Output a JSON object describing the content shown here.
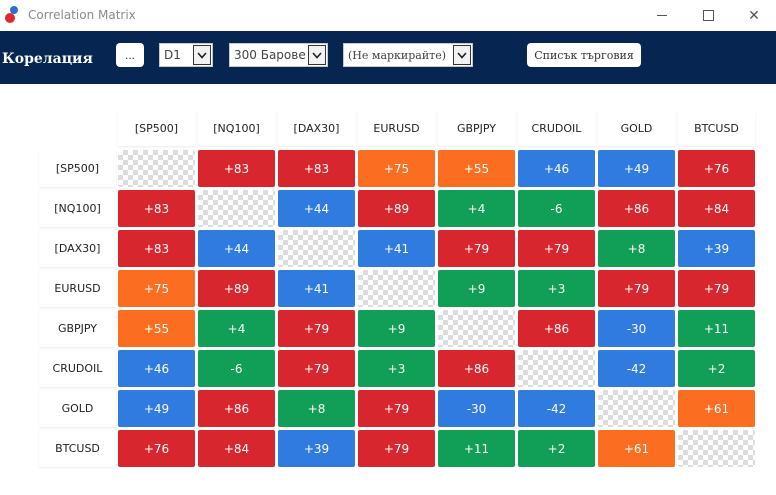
{
  "window": {
    "title": "Correlation Matrix"
  },
  "toolbar": {
    "title": "Корелация",
    "ellipsis_label": "...",
    "timeframe": "D1",
    "bars": "300 Барове",
    "marking": "(Не маркирайте)",
    "trade_list_label": "Списък търговия"
  },
  "colors": {
    "strong_pos": "#d8262e",
    "weak_pos": "#119e57",
    "medium": "#fb6e21",
    "negative_or_low": "#2f7be0"
  },
  "symbols": [
    "[SP500]",
    "[NQ100]",
    "[DAX30]",
    "EURUSD",
    "GBPJPY",
    "CRUDOIL",
    "GOLD",
    "BTCUSD"
  ],
  "matrix": [
    [
      null,
      "+83",
      "+83",
      "+75",
      "+55",
      "+46",
      "+49",
      "+76"
    ],
    [
      "+83",
      null,
      "+44",
      "+89",
      "+4",
      "-6",
      "+86",
      "+84"
    ],
    [
      "+83",
      "+44",
      null,
      "+41",
      "+79",
      "+79",
      "+8",
      "+39"
    ],
    [
      "+75",
      "+89",
      "+41",
      null,
      "+9",
      "+3",
      "+79",
      "+79"
    ],
    [
      "+55",
      "+4",
      "+79",
      "+9",
      null,
      "+86",
      "-30",
      "+11"
    ],
    [
      "+46",
      "-6",
      "+79",
      "+3",
      "+86",
      null,
      "-42",
      "+2"
    ],
    [
      "+49",
      "+86",
      "+8",
      "+79",
      "-30",
      "-42",
      null,
      "+61"
    ],
    [
      "+76",
      "+84",
      "+39",
      "+79",
      "+11",
      "+2",
      "+61",
      null
    ]
  ],
  "cell_colors": [
    [
      null,
      "red",
      "red",
      "orange",
      "orange",
      "blue",
      "blue",
      "red"
    ],
    [
      "red",
      null,
      "blue",
      "red",
      "green",
      "green",
      "red",
      "red"
    ],
    [
      "red",
      "blue",
      null,
      "blue",
      "red",
      "red",
      "green",
      "blue"
    ],
    [
      "orange",
      "red",
      "blue",
      null,
      "green",
      "green",
      "red",
      "red"
    ],
    [
      "orange",
      "green",
      "red",
      "green",
      null,
      "red",
      "blue",
      "green"
    ],
    [
      "blue",
      "green",
      "red",
      "green",
      "red",
      null,
      "blue",
      "green"
    ],
    [
      "blue",
      "red",
      "green",
      "red",
      "blue",
      "blue",
      null,
      "orange"
    ],
    [
      "red",
      "red",
      "blue",
      "red",
      "green",
      "green",
      "orange",
      null
    ]
  ],
  "palette": {
    "red": "#d8262e",
    "green": "#119e57",
    "orange": "#fb6e21",
    "blue": "#2f7be0"
  }
}
